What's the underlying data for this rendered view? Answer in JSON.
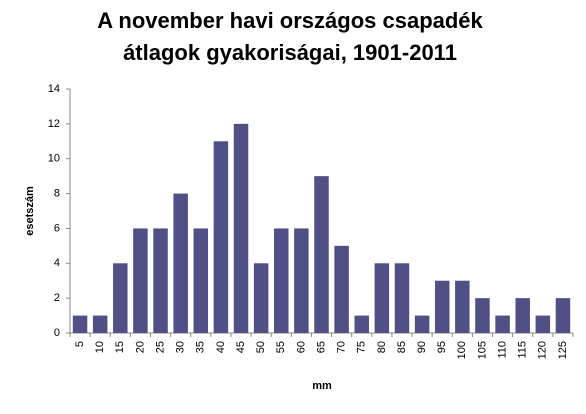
{
  "chart_data": {
    "type": "bar",
    "title": [
      "A november havi országos csapadék",
      "átlagok gyakoriságai, 1901-2011"
    ],
    "x_label": "mm",
    "y_label": "esetszám",
    "categories": [
      "5",
      "10",
      "15",
      "20",
      "25",
      "30",
      "35",
      "40",
      "45",
      "50",
      "55",
      "60",
      "65",
      "70",
      "75",
      "80",
      "85",
      "90",
      "95",
      "100",
      "105",
      "110",
      "115",
      "120",
      "125"
    ],
    "values": [
      1,
      1,
      4,
      6,
      6,
      8,
      6,
      11,
      12,
      4,
      6,
      6,
      9,
      5,
      1,
      4,
      4,
      1,
      3,
      3,
      2,
      1,
      2,
      1,
      2
    ],
    "color": "#505086",
    "ylim": [
      0,
      14
    ],
    "yticks": [
      0,
      2,
      4,
      6,
      8,
      10,
      12,
      14
    ],
    "grid": false
  }
}
